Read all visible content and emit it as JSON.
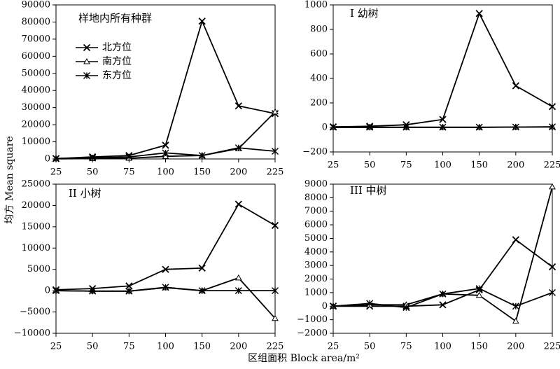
{
  "chart_data": {
    "shared_xlabel": "区组面积 Block area/m²",
    "shared_ylabel": "均方 Mean square",
    "panels": [
      {
        "type": "line",
        "title": "样地内所有种群",
        "categories": [
          "25",
          "50",
          "75",
          "100",
          "150",
          "200",
          "225"
        ],
        "ylim": [
          0,
          90000
        ],
        "yticks": [
          0,
          10000,
          20000,
          30000,
          40000,
          50000,
          60000,
          70000,
          80000,
          90000
        ],
        "yticklabels": [
          "0",
          "10000",
          "20000",
          "30000",
          "40000",
          "50000",
          "60000",
          "70000",
          "80000",
          "90000"
        ],
        "legend": "top-left",
        "series": [
          {
            "name": "北方位",
            "marker": "x",
            "values": [
              200,
              1200,
              2000,
              8000,
              80500,
              31000,
              26500
            ]
          },
          {
            "name": "南方位",
            "marker": "triangle",
            "values": [
              100,
              200,
              400,
              1500,
              2000,
              6000,
              27500
            ]
          },
          {
            "name": "东方位",
            "marker": "asterisk",
            "values": [
              300,
              600,
              1200,
              3500,
              2000,
              6500,
              4500
            ]
          }
        ]
      },
      {
        "type": "line",
        "title": "I 幼树",
        "categories": [
          "25",
          "50",
          "75",
          "100",
          "150",
          "200",
          "225"
        ],
        "ylim": [
          -200,
          1000
        ],
        "yticks": [
          -200,
          0,
          200,
          400,
          600,
          800,
          1000
        ],
        "yticklabels": [
          "−200",
          "0",
          "200",
          "400",
          "600",
          "800",
          "1000"
        ],
        "series": [
          {
            "name": "北方位",
            "marker": "x",
            "values": [
              5,
              10,
              22,
              65,
              930,
              340,
              170
            ]
          },
          {
            "name": "南方位",
            "marker": "triangle",
            "values": [
              0,
              0,
              0,
              0,
              0,
              3,
              5
            ]
          },
          {
            "name": "东方位",
            "marker": "asterisk",
            "values": [
              2,
              2,
              2,
              2,
              2,
              3,
              4
            ]
          }
        ]
      },
      {
        "type": "line",
        "title": "II 小树",
        "categories": [
          "25",
          "50",
          "75",
          "100",
          "150",
          "200",
          "225"
        ],
        "ylim": [
          -10000,
          25000
        ],
        "yticks": [
          -10000,
          -5000,
          0,
          5000,
          10000,
          15000,
          20000,
          25000
        ],
        "yticklabels": [
          "−10000",
          "−5000",
          "0",
          "5000",
          "10000",
          "15000",
          "20000",
          "25000"
        ],
        "series": [
          {
            "name": "北方位",
            "marker": "x",
            "values": [
              200,
              500,
              1100,
              5000,
              5300,
              20300,
              15300
            ]
          },
          {
            "name": "南方位",
            "marker": "triangle",
            "values": [
              0,
              -100,
              -100,
              700,
              0,
              3000,
              -6500
            ]
          },
          {
            "name": "东方位",
            "marker": "asterisk",
            "values": [
              0,
              -100,
              -100,
              800,
              0,
              0,
              0
            ]
          }
        ]
      },
      {
        "type": "line",
        "title": "III 中树",
        "categories": [
          "25",
          "50",
          "75",
          "100",
          "150",
          "200",
          "225"
        ],
        "ylim": [
          -2000,
          9000
        ],
        "yticks": [
          -2000,
          -1000,
          0,
          1000,
          2000,
          3000,
          4000,
          5000,
          6000,
          7000,
          8000,
          9000
        ],
        "yticklabels": [
          "−2000",
          "−1000",
          "0",
          "1000",
          "2000",
          "3000",
          "4000",
          "5000",
          "6000",
          "7000",
          "8000",
          "9000"
        ],
        "series": [
          {
            "name": "北方位",
            "marker": "x",
            "values": [
              0,
              0,
              0,
              100,
              1200,
              4900,
              2900
            ]
          },
          {
            "name": "南方位",
            "marker": "triangle",
            "values": [
              0,
              100,
              100,
              900,
              800,
              -1100,
              8800
            ]
          },
          {
            "name": "东方位",
            "marker": "asterisk",
            "values": [
              0,
              200,
              -100,
              900,
              1300,
              0,
              1000
            ]
          }
        ]
      }
    ]
  }
}
